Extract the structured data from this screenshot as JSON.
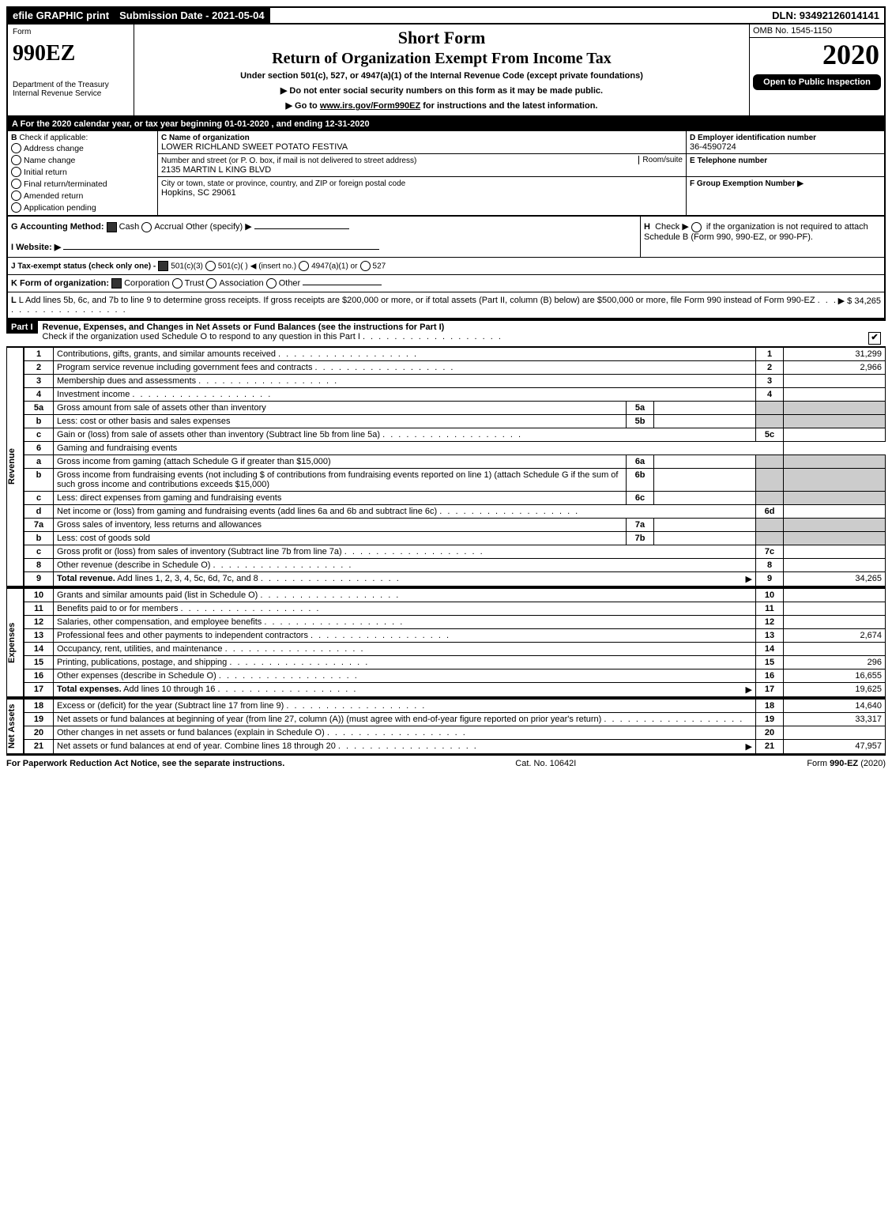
{
  "topbar": {
    "efile": "efile GRAPHIC print",
    "sub_label": "Submission Date - 2021-05-04",
    "dln": "DLN: 93492126014141"
  },
  "header": {
    "form_word": "Form",
    "form_num": "990EZ",
    "dept": "Department of the Treasury",
    "irs": "Internal Revenue Service",
    "short_form": "Short Form",
    "title": "Return of Organization Exempt From Income Tax",
    "under": "Under section 501(c), 527, or 4947(a)(1) of the Internal Revenue Code (except private foundations)",
    "notice1": "Do not enter social security numbers on this form as it may be made public.",
    "notice2_pre": "Go to ",
    "notice2_link": "www.irs.gov/Form990EZ",
    "notice2_post": " for instructions and the latest information.",
    "omb": "OMB No. 1545-1150",
    "year": "2020",
    "open": "Open to Public Inspection"
  },
  "lineA": "For the 2020 calendar year, or tax year beginning 01-01-2020 , and ending 12-31-2020",
  "boxB": {
    "title": "Check if applicable:",
    "items": [
      "Address change",
      "Name change",
      "Initial return",
      "Final return/terminated",
      "Amended return",
      "Application pending"
    ]
  },
  "boxC": {
    "label": "C Name of organization",
    "name": "LOWER RICHLAND SWEET POTATO FESTIVA",
    "street_label": "Number and street (or P. O. box, if mail is not delivered to street address)",
    "room_label": "Room/suite",
    "street": "2135 MARTIN L KING BLVD",
    "city_label": "City or town, state or province, country, and ZIP or foreign postal code",
    "city": "Hopkins, SC  29061"
  },
  "boxD": {
    "label": "D Employer identification number",
    "ein": "36-4590724"
  },
  "boxE": {
    "label": "E Telephone number"
  },
  "boxF": {
    "label": "F Group Exemption Number  ▶"
  },
  "lineG": {
    "label": "G Accounting Method:",
    "cash": "Cash",
    "accrual": "Accrual",
    "other": "Other (specify) ▶"
  },
  "lineH": {
    "text": "Check ▶",
    "rest": "if the organization is not required to attach Schedule B (Form 990, 990-EZ, or 990-PF)."
  },
  "lineI": {
    "label": "I Website: ▶"
  },
  "lineJ": {
    "label": "J Tax-exempt status (check only one) -",
    "a": "501(c)(3)",
    "b": "501(c)(  )",
    "ins": "◀ (insert no.)",
    "c": "4947(a)(1) or",
    "d": "527"
  },
  "lineK": {
    "label": "K Form of organization:",
    "corp": "Corporation",
    "trust": "Trust",
    "assoc": "Association",
    "other": "Other"
  },
  "lineL": {
    "text": "L Add lines 5b, 6c, and 7b to line 9 to determine gross receipts. If gross receipts are $200,000 or more, or if total assets (Part II, column (B) below) are $500,000 or more, file Form 990 instead of Form 990-EZ",
    "amt": "▶ $ 34,265"
  },
  "part1": {
    "tab": "Part I",
    "title": "Revenue, Expenses, and Changes in Net Assets or Fund Balances (see the instructions for Part I)",
    "sub": "Check if the organization used Schedule O to respond to any question in this Part I",
    "rows": [
      {
        "n": "1",
        "t": "Contributions, gifts, grants, and similar amounts received",
        "box": "1",
        "amt": "31,299"
      },
      {
        "n": "2",
        "t": "Program service revenue including government fees and contracts",
        "box": "2",
        "amt": "2,966"
      },
      {
        "n": "3",
        "t": "Membership dues and assessments",
        "box": "3",
        "amt": ""
      },
      {
        "n": "4",
        "t": "Investment income",
        "box": "4",
        "amt": ""
      },
      {
        "n": "5a",
        "t": "Gross amount from sale of assets other than inventory",
        "mid": "5a"
      },
      {
        "n": "b",
        "t": "Less: cost or other basis and sales expenses",
        "mid": "5b"
      },
      {
        "n": "c",
        "t": "Gain or (loss) from sale of assets other than inventory (Subtract line 5b from line 5a)",
        "box": "5c",
        "amt": ""
      },
      {
        "n": "6",
        "t": "Gaming and fundraising events",
        "plain": true
      },
      {
        "n": "a",
        "t": "Gross income from gaming (attach Schedule G if greater than $15,000)",
        "mid": "6a"
      },
      {
        "n": "b",
        "t": "Gross income from fundraising events (not including $                    of contributions from fundraising events reported on line 1) (attach Schedule G if the sum of such gross income and contributions exceeds $15,000)",
        "mid": "6b"
      },
      {
        "n": "c",
        "t": "Less: direct expenses from gaming and fundraising events",
        "mid": "6c"
      },
      {
        "n": "d",
        "t": "Net income or (loss) from gaming and fundraising events (add lines 6a and 6b and subtract line 6c)",
        "box": "6d",
        "amt": ""
      },
      {
        "n": "7a",
        "t": "Gross sales of inventory, less returns and allowances",
        "mid": "7a"
      },
      {
        "n": "b",
        "t": "Less: cost of goods sold",
        "mid": "7b"
      },
      {
        "n": "c",
        "t": "Gross profit or (loss) from sales of inventory (Subtract line 7b from line 7a)",
        "box": "7c",
        "amt": ""
      },
      {
        "n": "8",
        "t": "Other revenue (describe in Schedule O)",
        "box": "8",
        "amt": ""
      },
      {
        "n": "9",
        "t": "Total revenue. Add lines 1, 2, 3, 4, 5c, 6d, 7c, and 8",
        "box": "9",
        "amt": "34,265",
        "bold": true,
        "arrow": true
      }
    ],
    "exp_rows": [
      {
        "n": "10",
        "t": "Grants and similar amounts paid (list in Schedule O)",
        "box": "10",
        "amt": ""
      },
      {
        "n": "11",
        "t": "Benefits paid to or for members",
        "box": "11",
        "amt": ""
      },
      {
        "n": "12",
        "t": "Salaries, other compensation, and employee benefits",
        "box": "12",
        "amt": ""
      },
      {
        "n": "13",
        "t": "Professional fees and other payments to independent contractors",
        "box": "13",
        "amt": "2,674"
      },
      {
        "n": "14",
        "t": "Occupancy, rent, utilities, and maintenance",
        "box": "14",
        "amt": ""
      },
      {
        "n": "15",
        "t": "Printing, publications, postage, and shipping",
        "box": "15",
        "amt": "296"
      },
      {
        "n": "16",
        "t": "Other expenses (describe in Schedule O)",
        "box": "16",
        "amt": "16,655"
      },
      {
        "n": "17",
        "t": "Total expenses. Add lines 10 through 16",
        "box": "17",
        "amt": "19,625",
        "bold": true,
        "arrow": true
      }
    ],
    "net_rows": [
      {
        "n": "18",
        "t": "Excess or (deficit) for the year (Subtract line 17 from line 9)",
        "box": "18",
        "amt": "14,640"
      },
      {
        "n": "19",
        "t": "Net assets or fund balances at beginning of year (from line 27, column (A)) (must agree with end-of-year figure reported on prior year's return)",
        "box": "19",
        "amt": "33,317"
      },
      {
        "n": "20",
        "t": "Other changes in net assets or fund balances (explain in Schedule O)",
        "box": "20",
        "amt": ""
      },
      {
        "n": "21",
        "t": "Net assets or fund balances at end of year. Combine lines 18 through 20",
        "box": "21",
        "amt": "47,957",
        "arrow": true
      }
    ]
  },
  "vlabels": {
    "rev": "Revenue",
    "exp": "Expenses",
    "net": "Net Assets"
  },
  "footer": {
    "left": "For Paperwork Reduction Act Notice, see the separate instructions.",
    "mid": "Cat. No. 10642I",
    "right": "Form 990-EZ (2020)"
  },
  "colors": {
    "black": "#000000",
    "white": "#ffffff",
    "gray": "#cccccc"
  }
}
